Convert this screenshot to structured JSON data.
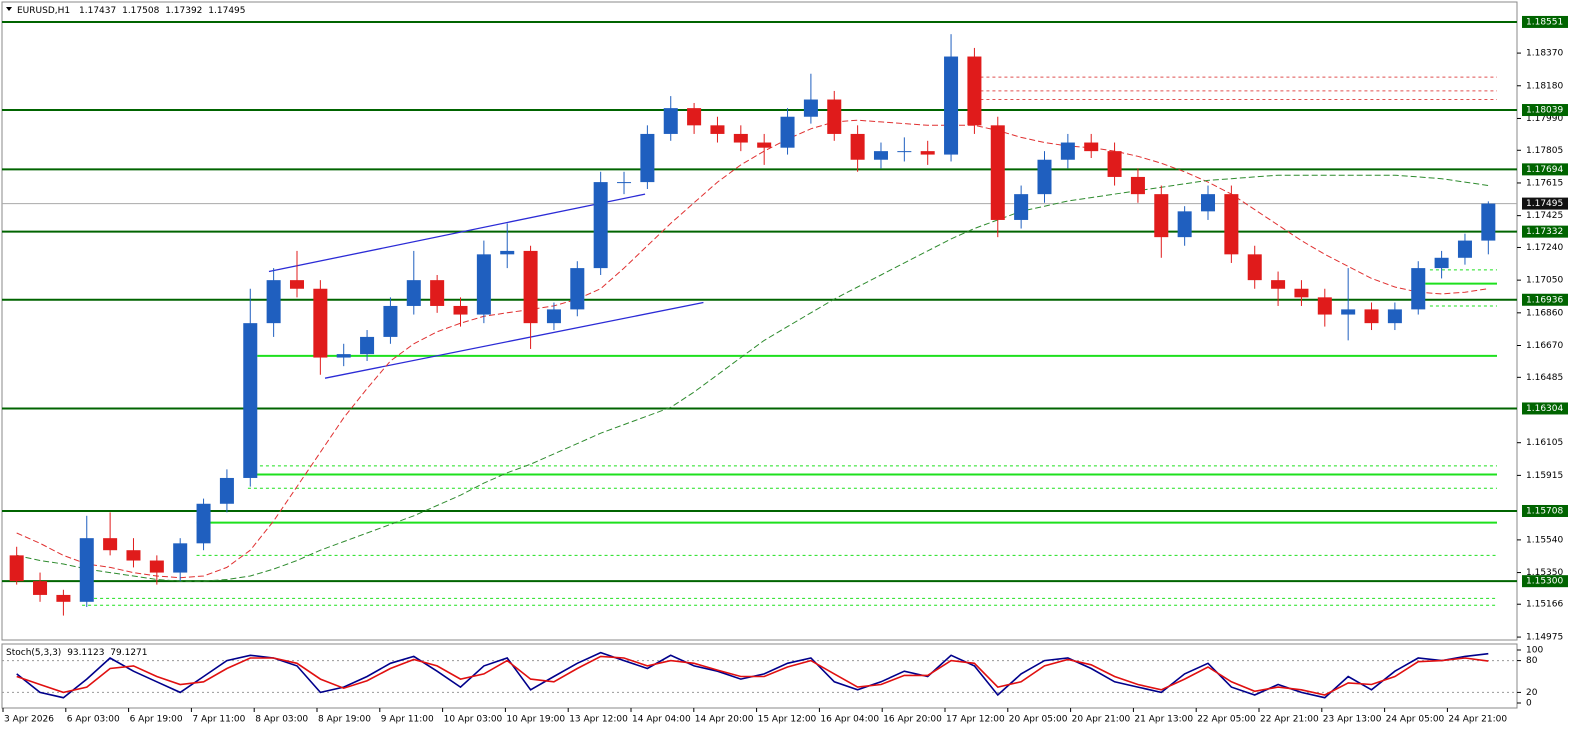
{
  "chart_data": [
    {
      "type": "candlestick",
      "title": "EURUSD,H1",
      "quote": {
        "open": 1.17437,
        "high": 1.17508,
        "low": 1.17392,
        "close": 1.17495
      },
      "x_labels": [
        "3 Apr 2026",
        "6 Apr 03:00",
        "6 Apr 19:00",
        "7 Apr 11:00",
        "8 Apr 03:00",
        "8 Apr 19:00",
        "9 Apr 11:00",
        "10 Apr 03:00",
        "10 Apr 19:00",
        "13 Apr 12:00",
        "14 Apr 04:00",
        "14 Apr 20:00",
        "15 Apr 12:00",
        "16 Apr 04:00",
        "16 Apr 20:00",
        "17 Apr 12:00",
        "20 Apr 05:00",
        "20 Apr 21:00",
        "21 Apr 13:00",
        "22 Apr 05:00",
        "22 Apr 21:00",
        "23 Apr 13:00",
        "24 Apr 05:00",
        "24 Apr 21:00"
      ],
      "open": [
        1.1545,
        1.153,
        1.1522,
        1.1518,
        1.1555,
        1.1548,
        1.1542,
        1.1535,
        1.1552,
        1.1575,
        1.159,
        1.168,
        1.1705,
        1.17,
        1.166,
        1.1662,
        1.1672,
        1.169,
        1.1705,
        1.169,
        1.1685,
        1.172,
        1.1722,
        1.168,
        1.1688,
        1.1712,
        1.1762,
        1.1762,
        1.179,
        1.1805,
        1.1795,
        1.179,
        1.1785,
        1.1782,
        1.18,
        1.181,
        1.179,
        1.1775,
        1.178,
        1.178,
        1.1778,
        1.1835,
        1.1795,
        1.174,
        1.1755,
        1.1775,
        1.1785,
        1.178,
        1.1765,
        1.1755,
        1.173,
        1.1745,
        1.1755,
        1.172,
        1.1705,
        1.17,
        1.1695,
        1.1685,
        1.1688,
        1.168,
        1.1688,
        1.1712,
        1.1718,
        1.1728
      ],
      "high": [
        1.155,
        1.1535,
        1.1525,
        1.1568,
        1.157,
        1.1555,
        1.1545,
        1.1555,
        1.1578,
        1.1595,
        1.17,
        1.1712,
        1.1722,
        1.1705,
        1.1668,
        1.1676,
        1.1695,
        1.1722,
        1.1708,
        1.1695,
        1.1728,
        1.1738,
        1.1725,
        1.1692,
        1.1716,
        1.1768,
        1.1768,
        1.1795,
        1.1812,
        1.1808,
        1.18,
        1.1795,
        1.179,
        1.1805,
        1.1825,
        1.1815,
        1.1795,
        1.1785,
        1.1788,
        1.1786,
        1.1848,
        1.184,
        1.18,
        1.176,
        1.178,
        1.179,
        1.179,
        1.1785,
        1.177,
        1.176,
        1.1748,
        1.176,
        1.176,
        1.1725,
        1.171,
        1.1705,
        1.17,
        1.1712,
        1.1692,
        1.1692,
        1.1716,
        1.1722,
        1.1732,
        1.17508
      ],
      "low": [
        1.1528,
        1.1518,
        1.151,
        1.1515,
        1.1545,
        1.1538,
        1.1528,
        1.153,
        1.1548,
        1.157,
        1.1585,
        1.1672,
        1.1695,
        1.165,
        1.1655,
        1.1658,
        1.1668,
        1.1685,
        1.1686,
        1.1678,
        1.168,
        1.1712,
        1.1665,
        1.1676,
        1.1684,
        1.1708,
        1.1755,
        1.1758,
        1.1786,
        1.179,
        1.1785,
        1.178,
        1.1772,
        1.1778,
        1.1796,
        1.1786,
        1.1768,
        1.177,
        1.1774,
        1.1772,
        1.1774,
        1.179,
        1.173,
        1.1735,
        1.175,
        1.177,
        1.1776,
        1.176,
        1.175,
        1.1718,
        1.1725,
        1.174,
        1.1715,
        1.17,
        1.169,
        1.169,
        1.1678,
        1.167,
        1.1676,
        1.1676,
        1.1685,
        1.1706,
        1.1714,
        1.172
      ],
      "close": [
        1.153,
        1.1522,
        1.1518,
        1.1555,
        1.1548,
        1.1542,
        1.1535,
        1.1552,
        1.1575,
        1.159,
        1.168,
        1.1705,
        1.17,
        1.166,
        1.1662,
        1.1672,
        1.169,
        1.1705,
        1.169,
        1.1685,
        1.172,
        1.1722,
        1.168,
        1.1688,
        1.1712,
        1.1762,
        1.1762,
        1.179,
        1.1805,
        1.1795,
        1.179,
        1.1785,
        1.1782,
        1.18,
        1.181,
        1.179,
        1.1775,
        1.178,
        1.178,
        1.1778,
        1.1835,
        1.1795,
        1.174,
        1.1755,
        1.1775,
        1.1785,
        1.178,
        1.1765,
        1.1755,
        1.173,
        1.1745,
        1.1755,
        1.172,
        1.1705,
        1.17,
        1.1695,
        1.1685,
        1.1688,
        1.168,
        1.1688,
        1.1712,
        1.1718,
        1.1728,
        1.17495
      ],
      "up_color": "#1f5fbf",
      "down_color": "#e01b1b",
      "moving_averages": [
        {
          "color": "#e03030",
          "values": [
            1.1558,
            1.1552,
            1.1545,
            1.154,
            1.1538,
            1.1535,
            1.1533,
            1.1532,
            1.1533,
            1.1538,
            1.1548,
            1.1565,
            1.1585,
            1.1605,
            1.1625,
            1.1642,
            1.1658,
            1.1668,
            1.1675,
            1.168,
            1.1684,
            1.1686,
            1.1688,
            1.169,
            1.1694,
            1.17,
            1.1712,
            1.1725,
            1.1738,
            1.175,
            1.1762,
            1.1772,
            1.178,
            1.1787,
            1.1793,
            1.1797,
            1.1798,
            1.1797,
            1.1796,
            1.1795,
            1.1795,
            1.1795,
            1.1792,
            1.1788,
            1.1785,
            1.1783,
            1.1782,
            1.178,
            1.1777,
            1.1773,
            1.1768,
            1.1762,
            1.1755,
            1.1746,
            1.1737,
            1.1728,
            1.172,
            1.1713,
            1.1706,
            1.1701,
            1.1698,
            1.1697,
            1.1698,
            1.17
          ]
        },
        {
          "color": "#2e8b2e",
          "values": [
            1.1545,
            1.1542,
            1.154,
            1.1537,
            1.1535,
            1.1533,
            1.1531,
            1.153,
            1.153,
            1.1531,
            1.1533,
            1.1537,
            1.1542,
            1.1548,
            1.1553,
            1.1558,
            1.1563,
            1.1568,
            1.1574,
            1.158,
            1.1587,
            1.1593,
            1.1598,
            1.1604,
            1.161,
            1.1616,
            1.1621,
            1.1626,
            1.1631,
            1.164,
            1.165,
            1.166,
            1.167,
            1.1678,
            1.1686,
            1.1694,
            1.1701,
            1.1708,
            1.1715,
            1.1722,
            1.1729,
            1.1735,
            1.174,
            1.1745,
            1.1748,
            1.1751,
            1.1753,
            1.1755,
            1.1757,
            1.1759,
            1.1761,
            1.1763,
            1.1764,
            1.1765,
            1.1766,
            1.1766,
            1.1766,
            1.1766,
            1.1766,
            1.1766,
            1.1765,
            1.1764,
            1.1762,
            1.176
          ]
        }
      ],
      "trendlines": [
        {
          "color": "#2b2bd6",
          "x": [
            10.8,
            26.9
          ],
          "y": [
            1.171,
            1.1755
          ]
        },
        {
          "color": "#2b2bd6",
          "x": [
            13.2,
            29.4
          ],
          "y": [
            1.1648,
            1.1692
          ]
        }
      ],
      "zone_lines": [
        {
          "price": 1.1661,
          "from": 10.3,
          "color": "#1ee01e",
          "dash": false
        },
        {
          "price": 1.1592,
          "from": 9.9,
          "color": "#1ee01e",
          "dash": false
        },
        {
          "price": 1.1564,
          "from": 7.7,
          "color": "#1ee01e",
          "dash": false
        },
        {
          "price": 1.1703,
          "from": 60.3,
          "color": "#1ee01e",
          "dash": false
        },
        {
          "price": 1.1597,
          "from": 9.9,
          "color": "#1ee01e",
          "dash": true
        },
        {
          "price": 1.1584,
          "from": 9.9,
          "color": "#1ee01e",
          "dash": true
        },
        {
          "price": 1.1545,
          "from": 7.7,
          "color": "#1ee01e",
          "dash": true
        },
        {
          "price": 1.152,
          "from": 2.8,
          "color": "#1ee01e",
          "dash": true
        },
        {
          "price": 1.1516,
          "from": 2.8,
          "color": "#1ee01e",
          "dash": true
        },
        {
          "price": 1.1711,
          "from": 60.5,
          "color": "#1ee01e",
          "dash": true
        },
        {
          "price": 1.169,
          "from": 60.5,
          "color": "#1ee01e",
          "dash": true
        },
        {
          "price": 1.1823,
          "from": 41,
          "color": "#e05050",
          "dash": true
        },
        {
          "price": 1.1815,
          "from": 41,
          "color": "#e05050",
          "dash": true
        },
        {
          "price": 1.181,
          "from": 41,
          "color": "#e05050",
          "dash": true
        }
      ],
      "levels": [
        1.18551,
        1.18039,
        1.17694,
        1.17332,
        1.16936,
        1.16304,
        1.15708,
        {
          "value": 1.153,
          "label": "1.15300"
        }
      ],
      "level_color": "#006400",
      "price_line_color": "#aaaaaa",
      "ylim": [
        1.14958,
        1.18667
      ],
      "yticks": [
        {
          "value": 1.1837,
          "label": "1.18370"
        },
        {
          "value": 1.1818,
          "label": "1.18180"
        },
        {
          "value": 1.1799,
          "label": "1.17990"
        },
        1.17805,
        1.17615,
        1.17425,
        {
          "value": 1.1724,
          "label": "1.17240"
        },
        {
          "value": 1.1705,
          "label": "1.17050"
        },
        {
          "value": 1.1686,
          "label": "1.16860"
        },
        {
          "value": 1.1667,
          "label": "1.16670"
        },
        1.16485,
        1.16105,
        1.15915,
        {
          "value": 1.1554,
          "label": "1.15540"
        },
        {
          "value": 1.1535,
          "label": "1.15350"
        },
        1.15166,
        1.14975
      ]
    },
    {
      "type": "line",
      "title": "Stoch(5,3,3)",
      "series": [
        {
          "color": "#00008b",
          "values": [
            55,
            20,
            10,
            45,
            85,
            60,
            40,
            20,
            50,
            80,
            90,
            85,
            70,
            20,
            30,
            50,
            75,
            88,
            60,
            30,
            70,
            85,
            25,
            50,
            75,
            95,
            80,
            65,
            90,
            70,
            60,
            45,
            55,
            75,
            85,
            40,
            25,
            40,
            60,
            50,
            90,
            70,
            15,
            55,
            80,
            85,
            65,
            40,
            30,
            20,
            55,
            75,
            30,
            15,
            35,
            20,
            10,
            50,
            25,
            60,
            85,
            80,
            88,
            93.1123
          ]
        },
        {
          "color": "#e01010",
          "values": [
            50,
            35,
            20,
            30,
            65,
            70,
            50,
            35,
            40,
            65,
            85,
            85,
            75,
            45,
            28,
            42,
            65,
            82,
            70,
            45,
            55,
            80,
            45,
            40,
            65,
            88,
            85,
            70,
            80,
            75,
            62,
            50,
            50,
            68,
            80,
            55,
            30,
            35,
            52,
            52,
            80,
            75,
            30,
            40,
            70,
            82,
            72,
            50,
            35,
            25,
            45,
            68,
            40,
            22,
            30,
            25,
            15,
            38,
            35,
            50,
            78,
            80,
            85,
            79.1271
          ]
        }
      ],
      "levels": [
        20,
        80
      ],
      "ylim": [
        0,
        100
      ],
      "yticks": [
        0,
        20,
        80,
        100
      ]
    }
  ]
}
